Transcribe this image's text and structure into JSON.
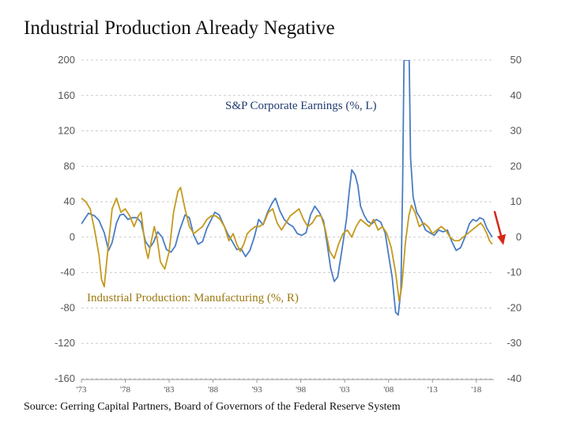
{
  "title": "Industrial Production Already Negative",
  "source": "Source: Gerring Capital Partners, Board of Governors of the Federal Reserve System",
  "chart_data": {
    "type": "line",
    "x_ticks": [
      "'73",
      "'78",
      "'83",
      "'88",
      "'93",
      "'98",
      "'03",
      "'08",
      "'13",
      "'18"
    ],
    "x_range": [
      1973,
      2020
    ],
    "y_left": {
      "range": [
        -160,
        200
      ],
      "ticks": [
        200,
        160,
        120,
        80,
        40,
        0,
        -40,
        -80,
        -120,
        -160
      ]
    },
    "y_right": {
      "range": [
        -40,
        50
      ],
      "ticks": [
        50,
        40,
        30,
        20,
        10,
        0,
        -10,
        -20,
        -30,
        -40
      ]
    },
    "grid": true,
    "series": [
      {
        "name": "S&P Corporate Earnings (%, L)",
        "axis": "left",
        "color": "#4a7cc4",
        "points": [
          [
            1973,
            15
          ],
          [
            1973.8,
            27
          ],
          [
            1974.5,
            24
          ],
          [
            1975,
            19
          ],
          [
            1975.6,
            5
          ],
          [
            1976.1,
            -15
          ],
          [
            1976.5,
            -6
          ],
          [
            1977,
            16
          ],
          [
            1977.4,
            25
          ],
          [
            1977.8,
            26
          ],
          [
            1978.3,
            20
          ],
          [
            1978.8,
            22
          ],
          [
            1979.3,
            22
          ],
          [
            1979.8,
            17
          ],
          [
            1980.3,
            -5
          ],
          [
            1980.8,
            -12
          ],
          [
            1981.2,
            -6
          ],
          [
            1981.7,
            6
          ],
          [
            1982.2,
            0
          ],
          [
            1982.7,
            -14
          ],
          [
            1983.2,
            -17
          ],
          [
            1983.7,
            -10
          ],
          [
            1984.2,
            8
          ],
          [
            1984.8,
            25
          ],
          [
            1985.3,
            22
          ],
          [
            1985.8,
            2
          ],
          [
            1986.3,
            -8
          ],
          [
            1986.8,
            -5
          ],
          [
            1987.3,
            10
          ],
          [
            1987.8,
            20
          ],
          [
            1988.2,
            28
          ],
          [
            1988.7,
            25
          ],
          [
            1989.2,
            14
          ],
          [
            1989.7,
            3
          ],
          [
            1990.2,
            -5
          ],
          [
            1990.7,
            -14
          ],
          [
            1991.2,
            -13
          ],
          [
            1991.7,
            -22
          ],
          [
            1992.2,
            -15
          ],
          [
            1992.7,
            0
          ],
          [
            1993.2,
            20
          ],
          [
            1993.7,
            14
          ],
          [
            1994.2,
            28
          ],
          [
            1994.7,
            38
          ],
          [
            1995.1,
            44
          ],
          [
            1995.6,
            30
          ],
          [
            1996.1,
            20
          ],
          [
            1996.6,
            15
          ],
          [
            1997.1,
            12
          ],
          [
            1997.6,
            4
          ],
          [
            1998.1,
            2
          ],
          [
            1998.6,
            5
          ],
          [
            1999.1,
            25
          ],
          [
            1999.6,
            35
          ],
          [
            2000.1,
            28
          ],
          [
            2000.6,
            18
          ],
          [
            2001,
            -8
          ],
          [
            2001.4,
            -35
          ],
          [
            2001.8,
            -50
          ],
          [
            2002.2,
            -45
          ],
          [
            2002.6,
            -20
          ],
          [
            2002.9,
            0
          ],
          [
            2003.2,
            20
          ],
          [
            2003.5,
            50
          ],
          [
            2003.8,
            76
          ],
          [
            2004.2,
            70
          ],
          [
            2004.5,
            58
          ],
          [
            2004.8,
            35
          ],
          [
            2005.2,
            25
          ],
          [
            2005.6,
            18
          ],
          [
            2006.1,
            15
          ],
          [
            2006.6,
            20
          ],
          [
            2007.1,
            17
          ],
          [
            2007.6,
            5
          ],
          [
            2008,
            -20
          ],
          [
            2008.4,
            -45
          ],
          [
            2008.8,
            -85
          ],
          [
            2009.1,
            -88
          ],
          [
            2009.4,
            -60
          ],
          [
            2009.6,
            60
          ],
          [
            2009.75,
            200
          ],
          [
            2010.35,
            200
          ],
          [
            2010.5,
            90
          ],
          [
            2010.8,
            45
          ],
          [
            2011.2,
            28
          ],
          [
            2011.7,
            20
          ],
          [
            2012.2,
            8
          ],
          [
            2012.7,
            5
          ],
          [
            2013.2,
            2
          ],
          [
            2013.7,
            8
          ],
          [
            2014.2,
            6
          ],
          [
            2014.7,
            8
          ],
          [
            2015.2,
            -5
          ],
          [
            2015.7,
            -15
          ],
          [
            2016.2,
            -12
          ],
          [
            2016.7,
            0
          ],
          [
            2017.2,
            15
          ],
          [
            2017.6,
            20
          ],
          [
            2018,
            18
          ],
          [
            2018.4,
            22
          ],
          [
            2018.8,
            20
          ],
          [
            2019.2,
            10
          ],
          [
            2019.5,
            5
          ],
          [
            2019.8,
            0
          ]
        ]
      },
      {
        "name": "Industrial Production: Manufacturing (%, R)",
        "axis": "right",
        "color": "#c49a1c",
        "points": [
          [
            1973,
            11
          ],
          [
            1973.5,
            10
          ],
          [
            1974,
            8
          ],
          [
            1974.5,
            2
          ],
          [
            1975,
            -5
          ],
          [
            1975.3,
            -12
          ],
          [
            1975.6,
            -14
          ],
          [
            1976,
            -4
          ],
          [
            1976.5,
            8
          ],
          [
            1977,
            11
          ],
          [
            1977.5,
            7
          ],
          [
            1978,
            8
          ],
          [
            1978.5,
            6
          ],
          [
            1979,
            3
          ],
          [
            1979.5,
            6
          ],
          [
            1979.8,
            7
          ],
          [
            1980.3,
            -3
          ],
          [
            1980.6,
            -6
          ],
          [
            1980.9,
            -2
          ],
          [
            1981.3,
            3
          ],
          [
            1981.6,
            0
          ],
          [
            1982,
            -7
          ],
          [
            1982.5,
            -9
          ],
          [
            1983,
            -4
          ],
          [
            1983.5,
            7
          ],
          [
            1984,
            13
          ],
          [
            1984.3,
            14
          ],
          [
            1984.8,
            8
          ],
          [
            1985.3,
            3
          ],
          [
            1985.8,
            1
          ],
          [
            1986.3,
            2
          ],
          [
            1986.8,
            3
          ],
          [
            1987.3,
            5
          ],
          [
            1987.8,
            6
          ],
          [
            1988.3,
            6
          ],
          [
            1988.8,
            5
          ],
          [
            1989.3,
            3
          ],
          [
            1989.8,
            -1
          ],
          [
            1990.3,
            1
          ],
          [
            1990.7,
            -2
          ],
          [
            1991.1,
            -4
          ],
          [
            1991.5,
            -2
          ],
          [
            1991.9,
            1
          ],
          [
            1992.3,
            2
          ],
          [
            1992.8,
            3
          ],
          [
            1993.3,
            3
          ],
          [
            1993.8,
            4
          ],
          [
            1994.3,
            7
          ],
          [
            1994.8,
            8
          ],
          [
            1995.3,
            4
          ],
          [
            1995.8,
            2
          ],
          [
            1996.3,
            4
          ],
          [
            1996.8,
            6
          ],
          [
            1997.3,
            7
          ],
          [
            1997.8,
            8
          ],
          [
            1998.3,
            5
          ],
          [
            1998.8,
            3
          ],
          [
            1999.3,
            4
          ],
          [
            1999.8,
            6
          ],
          [
            2000.3,
            6
          ],
          [
            2000.8,
            2
          ],
          [
            2001.3,
            -4
          ],
          [
            2001.8,
            -6
          ],
          [
            2002.3,
            -2
          ],
          [
            2002.8,
            1
          ],
          [
            2003.3,
            2
          ],
          [
            2003.8,
            0
          ],
          [
            2004.3,
            3
          ],
          [
            2004.8,
            5
          ],
          [
            2005.3,
            4
          ],
          [
            2005.8,
            3
          ],
          [
            2006.3,
            5
          ],
          [
            2006.8,
            2
          ],
          [
            2007.3,
            3
          ],
          [
            2007.8,
            1
          ],
          [
            2008.3,
            -3
          ],
          [
            2008.8,
            -10
          ],
          [
            2009.2,
            -18
          ],
          [
            2009.5,
            -14
          ],
          [
            2009.9,
            -2
          ],
          [
            2010.3,
            6
          ],
          [
            2010.6,
            9
          ],
          [
            2011,
            7
          ],
          [
            2011.5,
            3
          ],
          [
            2012,
            4
          ],
          [
            2012.5,
            3
          ],
          [
            2013,
            1
          ],
          [
            2013.5,
            2
          ],
          [
            2014,
            3
          ],
          [
            2014.5,
            2
          ],
          [
            2015,
            0
          ],
          [
            2015.5,
            -1
          ],
          [
            2016,
            -1
          ],
          [
            2016.5,
            0
          ],
          [
            2017,
            1
          ],
          [
            2017.5,
            2
          ],
          [
            2018,
            3
          ],
          [
            2018.5,
            4
          ],
          [
            2018.8,
            3
          ],
          [
            2019.2,
            1
          ],
          [
            2019.5,
            -1
          ],
          [
            2019.8,
            -2
          ]
        ]
      }
    ],
    "annotations": [
      {
        "text": "S&P Corporate Earnings (%, L)",
        "color": "#1f3a6e"
      },
      {
        "text": "Industrial Production: Manufacturing (%, R)",
        "color": "#9c7a12"
      }
    ],
    "arrow_color": "#d6281b"
  }
}
